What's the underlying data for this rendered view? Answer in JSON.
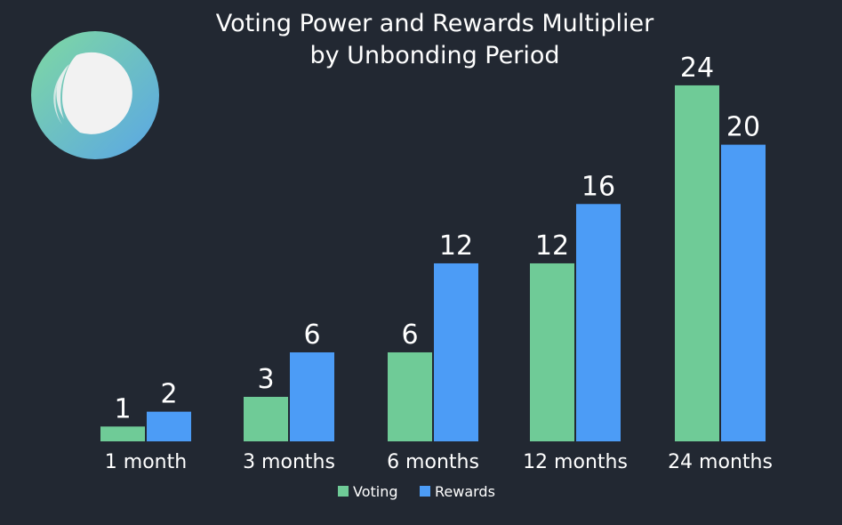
{
  "logo": {
    "colors": {
      "outer_start": "#7fd9a1",
      "outer_end": "#5aa6e6",
      "inner": "#f2f2f2"
    }
  },
  "chart_data": {
    "type": "bar",
    "title": "Voting Power and Rewards Multiplier",
    "subtitle": "by Unbonding Period",
    "categories": [
      "1 month",
      "3 months",
      "6 months",
      "12 months",
      "24 months"
    ],
    "series": [
      {
        "name": "Voting",
        "values": [
          1,
          3,
          6,
          12,
          24
        ],
        "color": "#6fcb97"
      },
      {
        "name": "Rewards",
        "values": [
          2,
          6,
          12,
          16,
          20
        ],
        "color": "#4c9cf6"
      }
    ],
    "ylim": [
      0,
      24
    ],
    "grid": false,
    "legend": "bottom-center",
    "xlabel": "",
    "ylabel": ""
  }
}
